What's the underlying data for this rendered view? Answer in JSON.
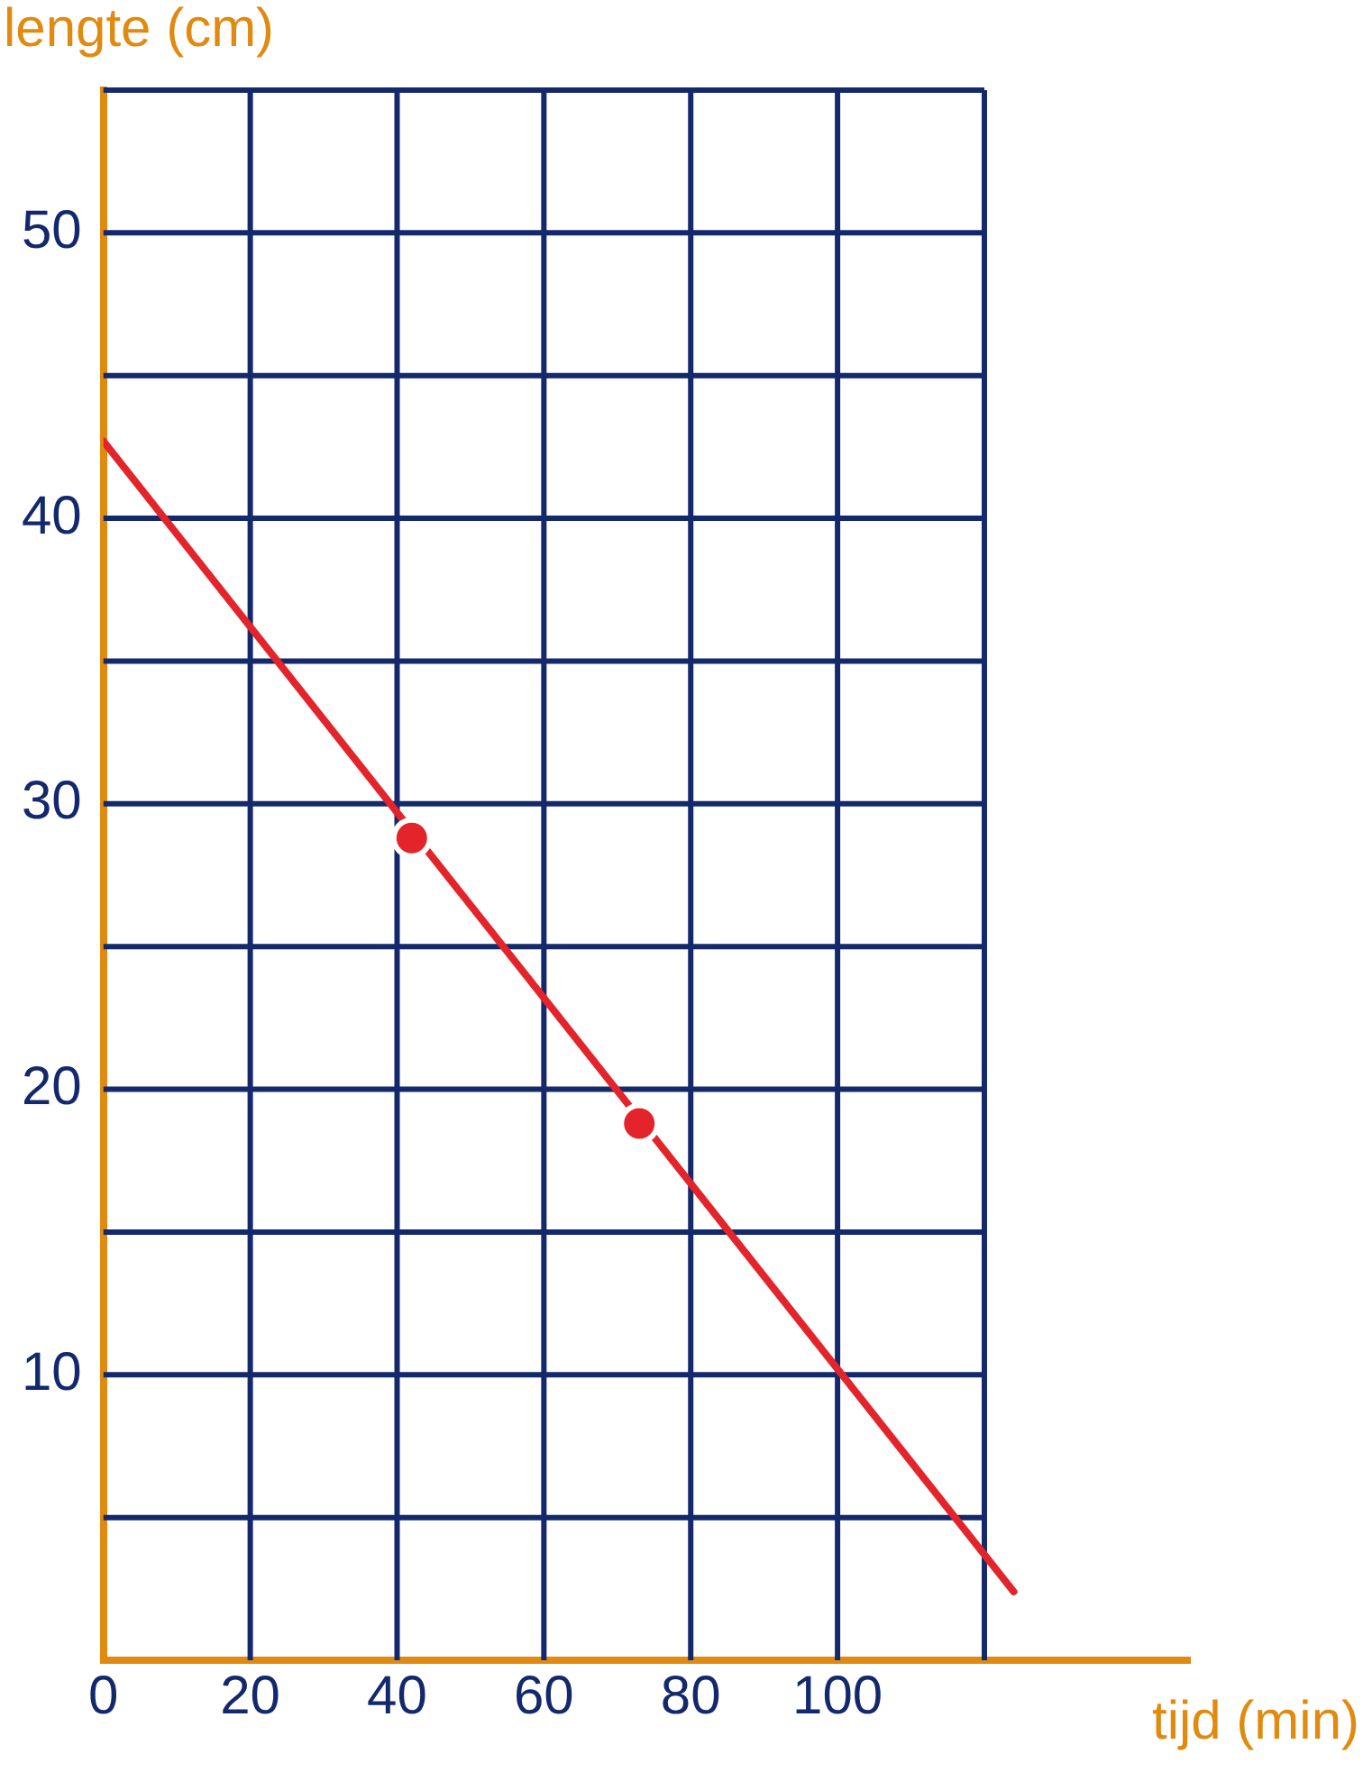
{
  "chart_data": {
    "type": "line",
    "xlabel": "tijd (min)",
    "ylabel": "lengte (cm)",
    "xlim": [
      0,
      148
    ],
    "ylim": [
      0,
      55
    ],
    "xticks": [
      0,
      20,
      40,
      60,
      80,
      100,
      {
        "value": 120,
        "label": null
      }
    ],
    "yticks": [
      {
        "value": 5,
        "label": null
      },
      10,
      {
        "value": 15,
        "label": null
      },
      20,
      {
        "value": 25,
        "label": null
      },
      30,
      {
        "value": 35,
        "label": null
      },
      40,
      {
        "value": 45,
        "label": null
      },
      50,
      {
        "value": 55,
        "label": null
      }
    ],
    "grid": true,
    "legend": false,
    "series": [
      {
        "color": "#e3242b",
        "x": [
          0,
          124
        ],
        "values": [
          42.7,
          2.4
        ],
        "marker": "none"
      },
      {
        "type": "scatter",
        "color": "#e3242b",
        "x": [
          42,
          73
        ],
        "values": [
          28.8,
          18.8
        ],
        "marker": "circle"
      }
    ]
  }
}
